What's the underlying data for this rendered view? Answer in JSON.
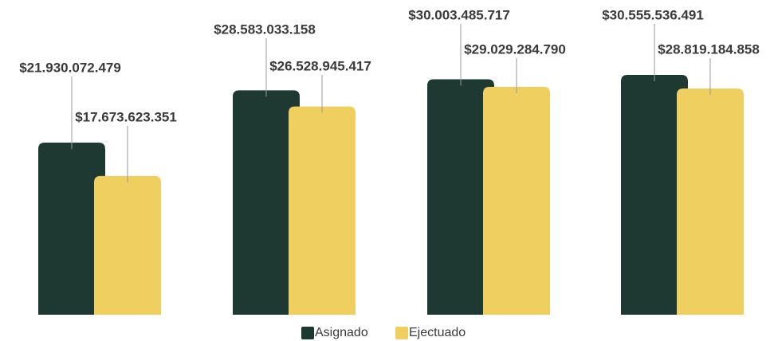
{
  "chart_data": {
    "type": "bar",
    "categories": [
      null,
      null,
      null,
      null
    ],
    "series": [
      {
        "name": "Asignado",
        "color": "#1e3932",
        "values": [
          21930072479,
          28583033158,
          30003485717,
          30555536491
        ],
        "value_labels": [
          "$21.930.072.479",
          "$28.583.033.158",
          "$30.003.485.717",
          "$30.555.536.491"
        ]
      },
      {
        "name": "Ejectuado",
        "color": "#eecf5f",
        "values": [
          17673623351,
          26528945417,
          29029284790,
          28819184858
        ],
        "value_labels": [
          "$17.673.623.351",
          "$26.528.945.417",
          "$29.029.284.790",
          "$28.819.184.858"
        ]
      }
    ],
    "legend": "bottom"
  }
}
